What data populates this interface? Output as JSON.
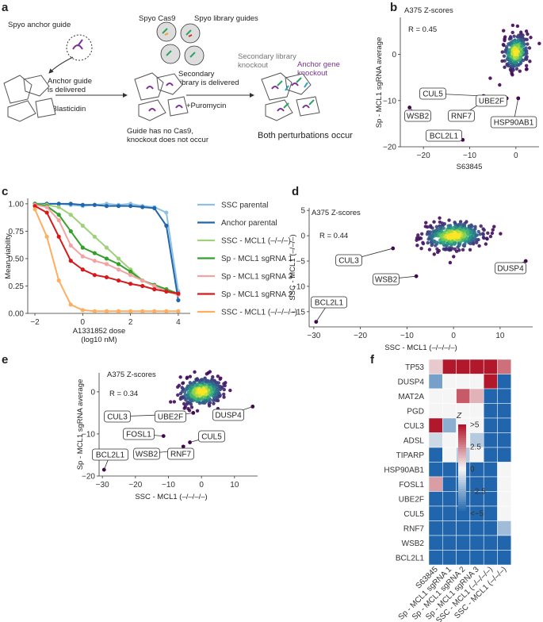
{
  "panels": {
    "a": {
      "letter": "a",
      "anchor_guide": "Spyo anchor guide",
      "spyo_cas9": "Spyo Cas9",
      "library_guides": "Spyo library guides",
      "anchor_knockout": "Anchor gene\nknockout",
      "anchor_delivered": "Anchor guide\nis delivered",
      "blasticidin": "+Blasticidin",
      "secondary_delivered": "Secondary\nlibrary is delivered",
      "puromycin": "+Puromycin",
      "secondary_knockout": "Secondary library\nknockout",
      "no_cas9": "Guide has no Cas9,\nknockout does not occur",
      "both": "Both perturbations occur"
    },
    "b": {
      "letter": "b"
    },
    "c": {
      "letter": "c"
    },
    "d": {
      "letter": "d"
    },
    "e": {
      "letter": "e"
    },
    "f": {
      "letter": "f"
    }
  },
  "colors": {
    "guide_purple": "#7b3294",
    "guide_green": "#2ca25f",
    "guide_orange": "#f39c34",
    "guide_red": "#d7301f",
    "guide_teal": "#1fa3b7",
    "viridis_dark": "#440154",
    "viridis_mid": "#21908d",
    "viridis_light": "#fde725"
  },
  "chart_data": [
    {
      "panel": "b",
      "type": "scatter",
      "title": "A375 Z-scores",
      "annotation": "R = 0.45",
      "xlabel": "S63845",
      "ylabel": "Sp - MCL1 sgRNA average",
      "xlim": [
        -25,
        5
      ],
      "ylim": [
        -20,
        8
      ],
      "xticks": [
        -20,
        -10,
        0
      ],
      "yticks": [
        -20,
        -10,
        0
      ],
      "labeled_points": [
        {
          "label": "CUL5",
          "x": -7,
          "y": -9
        },
        {
          "label": "WSB2",
          "x": -23,
          "y": -11.5
        },
        {
          "label": "RNF7",
          "x": -7.5,
          "y": -10.5
        },
        {
          "label": "UBE2F",
          "x": -2,
          "y": -9.5
        },
        {
          "label": "BCL2L1",
          "x": -11.5,
          "y": -18.5
        },
        {
          "label": "HSP90AB1",
          "x": 0.5,
          "y": -9.5
        }
      ]
    },
    {
      "panel": "c",
      "type": "line",
      "xlabel": "A1331852 dose\n(log10 nM)",
      "ylabel": "Mean viability",
      "xlim": [
        -2.3,
        4.5
      ],
      "ylim": [
        0,
        1.05
      ],
      "xticks": [
        -2,
        0,
        2,
        4
      ],
      "yticks": [
        0,
        0.25,
        0.5,
        0.75,
        1.0
      ],
      "x": [
        -2,
        -1.5,
        -1,
        -0.5,
        0,
        0.5,
        1,
        1.5,
        2,
        2.5,
        3,
        3.5,
        4
      ],
      "series": [
        {
          "name": "SSC parental",
          "color": "#8ec1e3",
          "values": [
            1.0,
            1.0,
            1.0,
            0.99,
            0.98,
            0.99,
            1.0,
            0.99,
            1.0,
            0.98,
            0.97,
            0.92,
            0.2
          ]
        },
        {
          "name": "Anchor parental",
          "color": "#2166ac",
          "values": [
            1.0,
            1.0,
            1.0,
            1.0,
            0.99,
            0.99,
            0.98,
            0.98,
            0.98,
            0.97,
            0.96,
            0.8,
            0.12
          ]
        },
        {
          "name": "SSC - MCL1 (–/–/–)",
          "color": "#9ed17a",
          "values": [
            1.0,
            0.99,
            0.97,
            0.9,
            0.8,
            0.7,
            0.6,
            0.5,
            0.4,
            0.3,
            0.25,
            0.2,
            0.17
          ]
        },
        {
          "name": "Sp - MCL1 sgRNA 1",
          "color": "#33a02c",
          "values": [
            1.0,
            0.98,
            0.9,
            0.75,
            0.6,
            0.55,
            0.5,
            0.45,
            0.38,
            0.3,
            0.26,
            0.22,
            0.18
          ]
        },
        {
          "name": "Sp - MCL1 sgRNA 3",
          "color": "#f4a3a3",
          "values": [
            0.99,
            0.97,
            0.85,
            0.62,
            0.52,
            0.48,
            0.45,
            0.4,
            0.35,
            0.3,
            0.25,
            0.2,
            0.17
          ]
        },
        {
          "name": "Sp - MCL1 sgRNA 2",
          "color": "#d7191c",
          "values": [
            0.98,
            0.92,
            0.7,
            0.48,
            0.4,
            0.35,
            0.33,
            0.3,
            0.27,
            0.25,
            0.22,
            0.2,
            0.18
          ]
        },
        {
          "name": "SSC - MCL1 (–/–/–/–)",
          "color": "#fdae61",
          "values": [
            0.95,
            0.7,
            0.3,
            0.08,
            0.03,
            0.02,
            0.02,
            0.02,
            0.02,
            0.02,
            0.02,
            0.02,
            0.02
          ]
        }
      ]
    },
    {
      "panel": "d",
      "type": "scatter",
      "title": "A375 Z-scores",
      "annotation": "R = 0.44",
      "xlabel": "SSC - MCL1 (–/–/–/–)",
      "ylabel": "SSC - MCL1 (–/–/–)",
      "xlim": [
        -31,
        17
      ],
      "ylim": [
        -18,
        5.5
      ],
      "xticks": [
        -30,
        -20,
        -10,
        0,
        10
      ],
      "yticks": [
        -15,
        -10,
        -5,
        0,
        5
      ],
      "labeled_points": [
        {
          "label": "CUL3",
          "x": -13,
          "y": -2.5
        },
        {
          "label": "DUSP4",
          "x": 15.5,
          "y": -5
        },
        {
          "label": "WSB2",
          "x": -8,
          "y": -8
        },
        {
          "label": "BCL2L1",
          "x": -29.5,
          "y": -17
        }
      ]
    },
    {
      "panel": "e",
      "type": "scatter",
      "title": "A375 Z-scores",
      "annotation": "R = 0.34",
      "xlabel": "SSC - MCL1 (–/–/–/–)",
      "ylabel": "Sp - MCL1 sgRNA average",
      "xlim": [
        -31,
        17
      ],
      "ylim": [
        -20,
        4.5
      ],
      "xticks": [
        -30,
        -20,
        -10,
        0,
        10
      ],
      "yticks": [
        -20,
        -10,
        0
      ],
      "labeled_points": [
        {
          "label": "CUL3",
          "x": -13,
          "y": -5.5
        },
        {
          "label": "UBE2F",
          "x": -2.5,
          "y": -5
        },
        {
          "label": "DUSP4",
          "x": 15.5,
          "y": -3.5
        },
        {
          "label": "FOSL1",
          "x": -11.5,
          "y": -10.5
        },
        {
          "label": "CUL5",
          "x": -3.5,
          "y": -12
        },
        {
          "label": "WSB2",
          "x": -8,
          "y": -14
        },
        {
          "label": "RNF7",
          "x": -5.5,
          "y": -13
        },
        {
          "label": "BCL2L1",
          "x": -29.5,
          "y": -18.5
        }
      ]
    },
    {
      "panel": "f",
      "type": "heatmap",
      "legend_title": "Z",
      "legend_ticks": [
        ">5",
        "2.5",
        "0",
        "−2.5",
        "<−5"
      ],
      "rows": [
        "TP53",
        "DUSP4",
        "MAT2A",
        "PGD",
        "CUL3",
        "ADSL",
        "TIPARP",
        "HSP90AB1",
        "FOSL1",
        "UBE2F",
        "CUL5",
        "RNF7",
        "WSB2",
        "BCL2L1"
      ],
      "columns": [
        "S63845",
        "Sp - MCL1 sgRNA 1",
        "Sp - MCL1 sgRNA 2",
        "Sp - MCL1 sgRNA 3",
        "SSC - MCL1 (–/–/–/–)",
        "SSC - MCL1 (–/–/–)"
      ],
      "values": [
        [
          1,
          5,
          5,
          5,
          5,
          3
        ],
        [
          -3,
          0,
          0,
          0,
          5,
          -5
        ],
        [
          0,
          0,
          3.5,
          1.5,
          -5,
          -5
        ],
        [
          0,
          0,
          0,
          0,
          -5,
          -5
        ],
        [
          5,
          -2.5,
          0,
          0,
          -5,
          -5
        ],
        [
          -1,
          0,
          0,
          -1.5,
          -5,
          -5
        ],
        [
          -5,
          0,
          -1.5,
          0,
          -5,
          -5
        ],
        [
          -5,
          -5,
          -5,
          -5,
          -5,
          0
        ],
        [
          2,
          -5,
          -5,
          -5,
          -5,
          0
        ],
        [
          -5,
          -5,
          -5,
          -5,
          -5,
          0
        ],
        [
          -5,
          -5,
          -5,
          -5,
          -5,
          0
        ],
        [
          -5,
          -5,
          -5,
          -5,
          -5,
          -2
        ],
        [
          -5,
          -5,
          -5,
          -5,
          -5,
          -5
        ],
        [
          -5,
          -5,
          -5,
          -5,
          -5,
          -5
        ]
      ]
    }
  ]
}
